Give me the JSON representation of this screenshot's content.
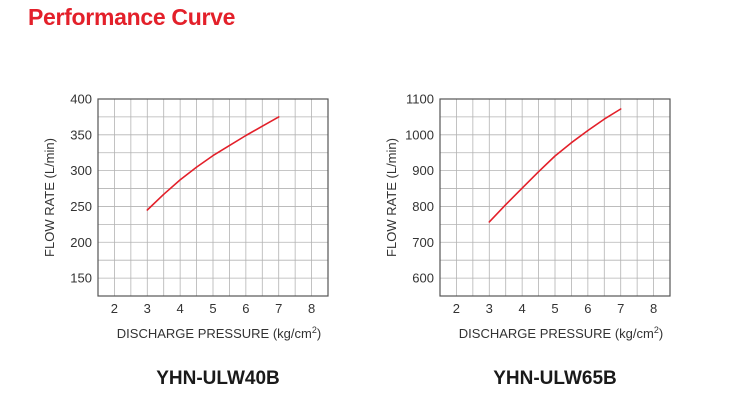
{
  "page": {
    "title": "Performance Curve"
  },
  "colors": {
    "title": "#e3202a",
    "curve": "#e3202a",
    "grid": "#b3b3b3",
    "frame": "#555555"
  },
  "chart_data": [
    {
      "type": "line",
      "model": "YHN-ULW40B",
      "xlabel": "DISCHARGE PRESSURE (kg/cm",
      "xlabel_sup": "2",
      "xlabel_end": ")",
      "ylabel": "FLOW RATE (L/min)",
      "xlim": [
        1.5,
        8.5
      ],
      "ylim": [
        125,
        400
      ],
      "xticks": [
        2,
        3,
        4,
        5,
        6,
        7,
        8
      ],
      "yticks": [
        150,
        200,
        250,
        300,
        350,
        400
      ],
      "grid": true,
      "series": [
        {
          "x": [
            3,
            3.5,
            4,
            4.5,
            5,
            5.5,
            6,
            6.5,
            7
          ],
          "y": [
            245,
            267,
            287,
            305,
            321,
            335,
            349,
            362,
            375
          ]
        }
      ]
    },
    {
      "type": "line",
      "model": "YHN-ULW65B",
      "xlabel": "DISCHARGE PRESSURE (kg/cm",
      "xlabel_sup": "2",
      "xlabel_end": ")",
      "ylabel": "FLOW RATE (L/min)",
      "xlim": [
        1.5,
        8.5
      ],
      "ylim": [
        550,
        1100
      ],
      "xticks": [
        2,
        3,
        4,
        5,
        6,
        7,
        8
      ],
      "yticks": [
        600,
        700,
        800,
        900,
        1000,
        1100
      ],
      "grid": true,
      "series": [
        {
          "x": [
            3,
            3.5,
            4,
            4.5,
            5,
            5.5,
            6,
            6.5,
            7
          ],
          "y": [
            757,
            805,
            851,
            897,
            941,
            978,
            1012,
            1044,
            1072
          ]
        }
      ]
    }
  ]
}
